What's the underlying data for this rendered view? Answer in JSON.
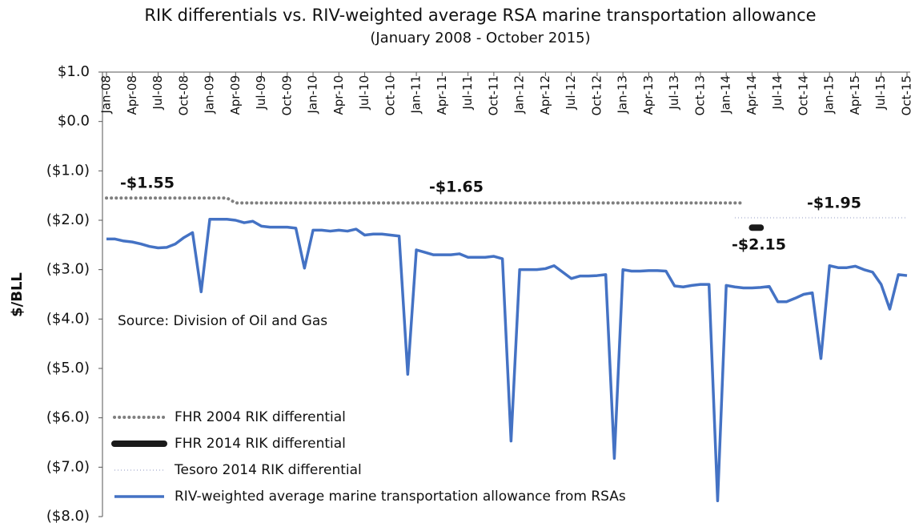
{
  "chart_data": {
    "type": "line",
    "title": "RIK differentials vs. RIV-weighted average RSA marine transportation allowance",
    "subtitle": "(January 2008 - October 2015)",
    "y_label": "$/BLL",
    "categories": [
      "Jan-08",
      null,
      null,
      "Apr-08",
      null,
      null,
      "Jul-08",
      null,
      null,
      "Oct-08",
      null,
      null,
      "Jan-09",
      null,
      null,
      "Apr-09",
      null,
      null,
      "Jul-09",
      null,
      null,
      "Oct-09",
      null,
      null,
      "Jan-10",
      null,
      null,
      "Apr-10",
      null,
      null,
      "Jul-10",
      null,
      null,
      "Oct-10",
      null,
      null,
      "Jan-11",
      null,
      null,
      "Apr-11",
      null,
      null,
      "Jul-11",
      null,
      null,
      "Oct-11",
      null,
      null,
      "Jan-12",
      null,
      null,
      "Apr-12",
      null,
      null,
      "Jul-12",
      null,
      null,
      "Oct-12",
      null,
      null,
      "Jan-13",
      null,
      null,
      "Apr-13",
      null,
      null,
      "Jul-13",
      null,
      null,
      "Oct-13",
      null,
      null,
      "Jan-14",
      null,
      null,
      "Apr-14",
      null,
      null,
      "Jul-14",
      null,
      null,
      "Oct-14",
      null,
      null,
      "Jan-15",
      null,
      null,
      "Apr-15",
      null,
      null,
      "Jul-15",
      null,
      null,
      "Oct-15"
    ],
    "series": [
      {
        "name": "FHR 2004 RIK differential",
        "color": "#7f7f7f",
        "style": "dotted",
        "values": [
          -1.55,
          -1.55,
          -1.55,
          -1.55,
          -1.55,
          -1.55,
          -1.55,
          -1.55,
          -1.55,
          -1.55,
          -1.55,
          -1.55,
          -1.55,
          -1.55,
          -1.55,
          -1.65,
          -1.65,
          -1.65,
          -1.65,
          -1.65,
          -1.65,
          -1.65,
          -1.65,
          -1.65,
          -1.65,
          -1.65,
          -1.65,
          -1.65,
          -1.65,
          -1.65,
          -1.65,
          -1.65,
          -1.65,
          -1.65,
          -1.65,
          -1.65,
          -1.65,
          -1.65,
          -1.65,
          -1.65,
          -1.65,
          -1.65,
          -1.65,
          -1.65,
          -1.65,
          -1.65,
          -1.65,
          -1.65,
          -1.65,
          -1.65,
          -1.65,
          -1.65,
          -1.65,
          -1.65,
          -1.65,
          -1.65,
          -1.65,
          -1.65,
          -1.65,
          -1.65,
          -1.65,
          -1.65,
          -1.65,
          -1.65,
          -1.65,
          -1.65,
          -1.65,
          -1.65,
          -1.65,
          -1.65,
          -1.65,
          -1.65,
          -1.65,
          -1.65,
          -1.65,
          null,
          null,
          null,
          null,
          null,
          null,
          null,
          null,
          null,
          null,
          null,
          null,
          null,
          null,
          null,
          null,
          null,
          null,
          null
        ]
      },
      {
        "name": "FHR 2014 RIK differential",
        "color": "#1a1a1a",
        "style": "thick",
        "values": [
          null,
          null,
          null,
          null,
          null,
          null,
          null,
          null,
          null,
          null,
          null,
          null,
          null,
          null,
          null,
          null,
          null,
          null,
          null,
          null,
          null,
          null,
          null,
          null,
          null,
          null,
          null,
          null,
          null,
          null,
          null,
          null,
          null,
          null,
          null,
          null,
          null,
          null,
          null,
          null,
          null,
          null,
          null,
          null,
          null,
          null,
          null,
          null,
          null,
          null,
          null,
          null,
          null,
          null,
          null,
          null,
          null,
          null,
          null,
          null,
          null,
          null,
          null,
          null,
          null,
          null,
          null,
          null,
          null,
          null,
          null,
          null,
          null,
          null,
          null,
          -2.15,
          -2.15,
          null,
          null,
          null,
          null,
          null,
          null,
          null,
          null,
          null,
          null,
          null,
          null,
          null,
          null,
          null,
          null,
          null
        ]
      },
      {
        "name": "Tesoro 2014 RIK differential",
        "color": "#c5cadf",
        "style": "faint",
        "values": [
          null,
          null,
          null,
          null,
          null,
          null,
          null,
          null,
          null,
          null,
          null,
          null,
          null,
          null,
          null,
          null,
          null,
          null,
          null,
          null,
          null,
          null,
          null,
          null,
          null,
          null,
          null,
          null,
          null,
          null,
          null,
          null,
          null,
          null,
          null,
          null,
          null,
          null,
          null,
          null,
          null,
          null,
          null,
          null,
          null,
          null,
          null,
          null,
          null,
          null,
          null,
          null,
          null,
          null,
          null,
          null,
          null,
          null,
          null,
          null,
          null,
          null,
          null,
          null,
          null,
          null,
          null,
          null,
          null,
          null,
          null,
          null,
          null,
          -1.95,
          -1.95,
          -1.95,
          -1.95,
          -1.95,
          -1.95,
          -1.95,
          -1.95,
          -1.95,
          -1.95,
          -1.95,
          -1.95,
          -1.95,
          -1.95,
          -1.95,
          -1.95,
          -1.95,
          -1.95,
          -1.95,
          -1.95,
          -1.95
        ]
      },
      {
        "name": "RIV-weighted average marine transportation allowance from RSAs",
        "color": "#4472c4",
        "style": "solid",
        "values": [
          -2.38,
          -2.38,
          -2.42,
          -2.44,
          -2.48,
          -2.53,
          -2.56,
          -2.55,
          -2.48,
          -2.35,
          -2.25,
          -3.45,
          -1.98,
          -1.98,
          -1.98,
          -2.0,
          -2.05,
          -2.02,
          -2.12,
          -2.14,
          -2.14,
          -2.14,
          -2.16,
          -2.97,
          -2.2,
          -2.2,
          -2.22,
          -2.2,
          -2.22,
          -2.18,
          -2.3,
          -2.28,
          -2.28,
          -2.3,
          -2.32,
          -5.12,
          -2.6,
          -2.65,
          -2.7,
          -2.7,
          -2.7,
          -2.68,
          -2.75,
          -2.75,
          -2.75,
          -2.73,
          -2.78,
          -6.47,
          -3.0,
          -3.0,
          -3.0,
          -2.98,
          -2.92,
          -3.05,
          -3.18,
          -3.13,
          -3.13,
          -3.12,
          -3.1,
          -6.82,
          -3.0,
          -3.03,
          -3.03,
          -3.02,
          -3.02,
          -3.03,
          -3.33,
          -3.35,
          -3.32,
          -3.3,
          -3.3,
          -7.68,
          -3.32,
          -3.35,
          -3.37,
          -3.37,
          -3.36,
          -3.34,
          -3.65,
          -3.65,
          -3.58,
          -3.5,
          -3.47,
          -4.8,
          -2.92,
          -2.96,
          -2.96,
          -2.93,
          -3.0,
          -3.05,
          -3.3,
          -3.8,
          -3.1,
          -3.12
        ]
      }
    ],
    "annotations": [
      "-$1.55",
      "-$1.65",
      "-$1.95",
      "-$2.15",
      "Source: Division of Oil and Gas"
    ],
    "ylim": [
      -8,
      1
    ],
    "yticks": [
      {
        "value": 1,
        "label": "$1.0"
      },
      {
        "value": 0,
        "label": "$0.0"
      },
      {
        "value": -1,
        "label": "($1.0)"
      },
      {
        "value": -2,
        "label": "($2.0)"
      },
      {
        "value": -3,
        "label": "($3.0)"
      },
      {
        "value": -4,
        "label": "($4.0)"
      },
      {
        "value": -5,
        "label": "($5.0)"
      },
      {
        "value": -6,
        "label": "($6.0)"
      },
      {
        "value": -7,
        "label": "($7.0)"
      },
      {
        "value": -8,
        "label": "($8.0)"
      }
    ],
    "grid": false,
    "legend": "lower left"
  }
}
